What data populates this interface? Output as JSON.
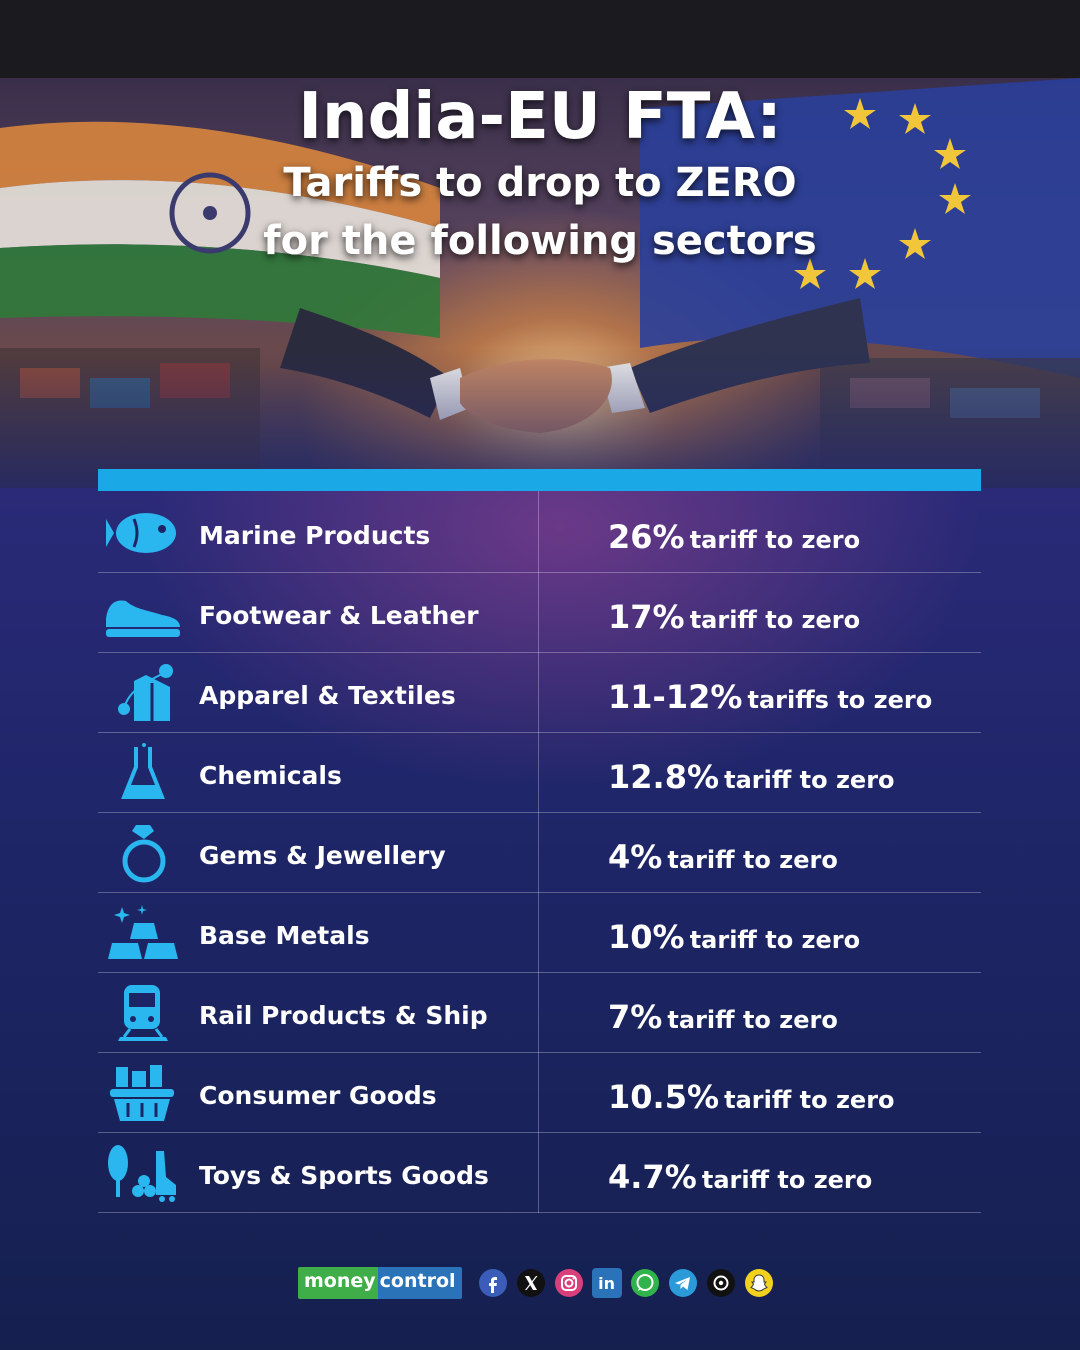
{
  "header": {
    "title_line1": "India-EU FTA:",
    "title_line2": "Tariffs to drop to ZERO",
    "title_line3": "for the following sectors"
  },
  "colors": {
    "accent": "#1aa8e6",
    "icon": "#2ab6ef",
    "brand_green": "#3fae49",
    "brand_blue": "#2a73b8"
  },
  "sectors": [
    {
      "icon": "fish-icon",
      "label": "Marine Products",
      "pct": "26%",
      "text": "tariff to zero"
    },
    {
      "icon": "shoe-icon",
      "label": "Footwear & Leather",
      "pct": "17%",
      "text": "tariff to zero"
    },
    {
      "icon": "apparel-icon",
      "label": "Apparel & Textiles",
      "pct": "11-12%",
      "text": "tariffs to zero"
    },
    {
      "icon": "flask-icon",
      "label": "Chemicals",
      "pct": "12.8%",
      "text": "tariff to zero"
    },
    {
      "icon": "ring-icon",
      "label": "Gems & Jewellery",
      "pct": "4%",
      "text": "tariff to zero"
    },
    {
      "icon": "gold-bars-icon",
      "label": "Base Metals",
      "pct": "10%",
      "text": "tariff to zero"
    },
    {
      "icon": "train-icon",
      "label": "Rail Products & Ship",
      "pct": "7%",
      "text": "tariff to zero"
    },
    {
      "icon": "basket-icon",
      "label": "Consumer Goods",
      "pct": "10.5%",
      "text": "tariff to zero"
    },
    {
      "icon": "toys-sports-icon",
      "label": "Toys & Sports Goods",
      "pct": "4.7%",
      "text": "tariff  to zero"
    }
  ],
  "footer": {
    "brand_part1": "money",
    "brand_part2": "control",
    "social_icons": [
      "facebook-icon",
      "x-icon",
      "instagram-icon",
      "linkedin-icon",
      "whatsapp-icon",
      "telegram-icon",
      "threads-icon",
      "snapchat-icon"
    ],
    "linkedin_label": "in"
  }
}
